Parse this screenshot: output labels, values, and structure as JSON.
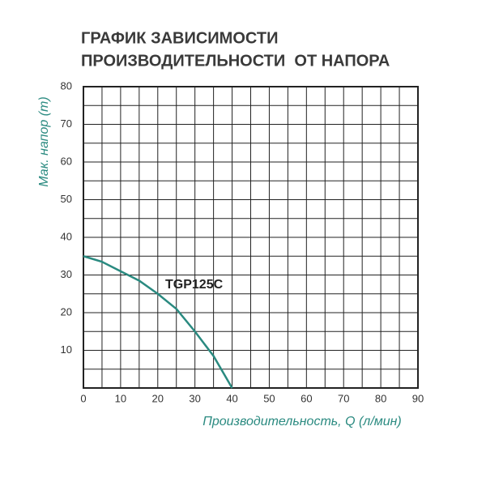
{
  "chart_data": {
    "type": "line",
    "title": [
      "ГРАФИК ЗАВИСИМОСТИ",
      "ПРОИЗВОДИТЕЛЬНОСТИ  ОТ НАПОРА"
    ],
    "xlabel": "Производительность, Q (л/мин)",
    "ylabel": "Мак. напор (m)",
    "annotation": "TGP125C",
    "x": [
      0,
      5,
      10,
      15,
      20,
      25,
      30,
      35,
      40
    ],
    "series": [
      {
        "name": "TGP125C",
        "color": "#2a8a80",
        "values": [
          35,
          33.5,
          31,
          28.5,
          25,
          21,
          15,
          8.5,
          0
        ]
      }
    ],
    "xlim": [
      0,
      90
    ],
    "xticks": [
      0,
      10,
      20,
      30,
      40,
      50,
      60,
      70,
      80,
      90
    ],
    "ylim": [
      0,
      80
    ],
    "yticks": [
      10,
      20,
      30,
      40,
      50,
      60,
      70,
      80
    ],
    "xminor_ticks": [
      5,
      15,
      25,
      35,
      45,
      55,
      65,
      75,
      85
    ],
    "yminor_ticks": [
      5,
      15,
      25,
      35,
      45,
      55,
      65,
      75
    ],
    "grid": true
  }
}
